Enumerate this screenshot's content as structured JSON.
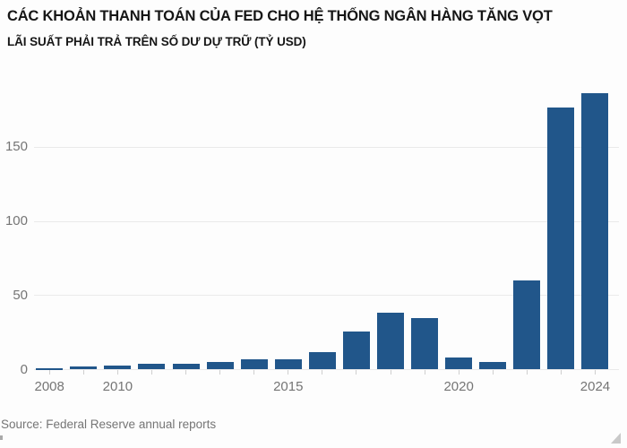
{
  "chart_data": {
    "type": "bar",
    "title": "CÁC KHOẢN THANH TOÁN CỦA FED CHO HỆ THỐNG NGÂN HÀNG TĂNG VỌT",
    "subtitle": "LÃI SUẤT PHẢI TRẢ TRÊN SỐ DƯ DỰ TRỮ (TỶ USD)",
    "source": "Source: Federal Reserve annual reports",
    "categories": [
      2008,
      2009,
      2010,
      2011,
      2012,
      2013,
      2014,
      2015,
      2016,
      2017,
      2018,
      2019,
      2020,
      2021,
      2022,
      2023,
      2024
    ],
    "values": [
      0.9,
      2.2,
      2.7,
      3.8,
      3.9,
      5.2,
      6.9,
      6.9,
      12,
      25.9,
      38.5,
      34.8,
      7.9,
      5.3,
      60.4,
      176.5,
      186.5
    ],
    "ylim": [
      0,
      190
    ],
    "yticks": [
      0,
      50,
      100,
      150
    ],
    "ytick_labels": [
      "0",
      "50",
      "100",
      "150"
    ],
    "xtick_years": [
      2008,
      2010,
      2015,
      2020,
      2024
    ],
    "xtick_labels": [
      "2008",
      "2010",
      "2015",
      "2020",
      "2024"
    ],
    "grid": true,
    "legend": false,
    "bar_color": "#21568a",
    "grid_color": "#eaeaea",
    "tick_color": "#cfcfcf",
    "axis_text_color": "#757575"
  }
}
